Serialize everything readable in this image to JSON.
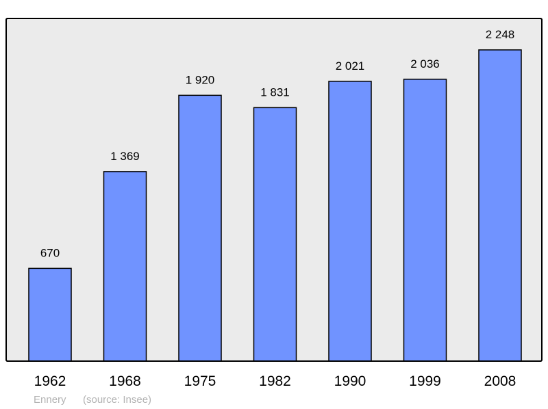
{
  "chart_data": {
    "type": "bar",
    "categories": [
      "1962",
      "1968",
      "1975",
      "1982",
      "1990",
      "1999",
      "2008"
    ],
    "values": [
      670,
      1369,
      1920,
      1831,
      2021,
      2036,
      2248
    ],
    "data_labels": [
      "670",
      "1 369",
      "1 920",
      "1 831",
      "2 021",
      "2 036",
      "2 248"
    ],
    "title": "",
    "xlabel": "",
    "ylabel": "",
    "ylim": [
      0,
      2475
    ],
    "grid": false,
    "colors": {
      "bar": "#7093ff",
      "background": "#ebebeb",
      "frame": "#000000",
      "footer": "#b3b3b3"
    }
  },
  "footer": {
    "place": "Ennery",
    "source": "(source: Insee)"
  }
}
